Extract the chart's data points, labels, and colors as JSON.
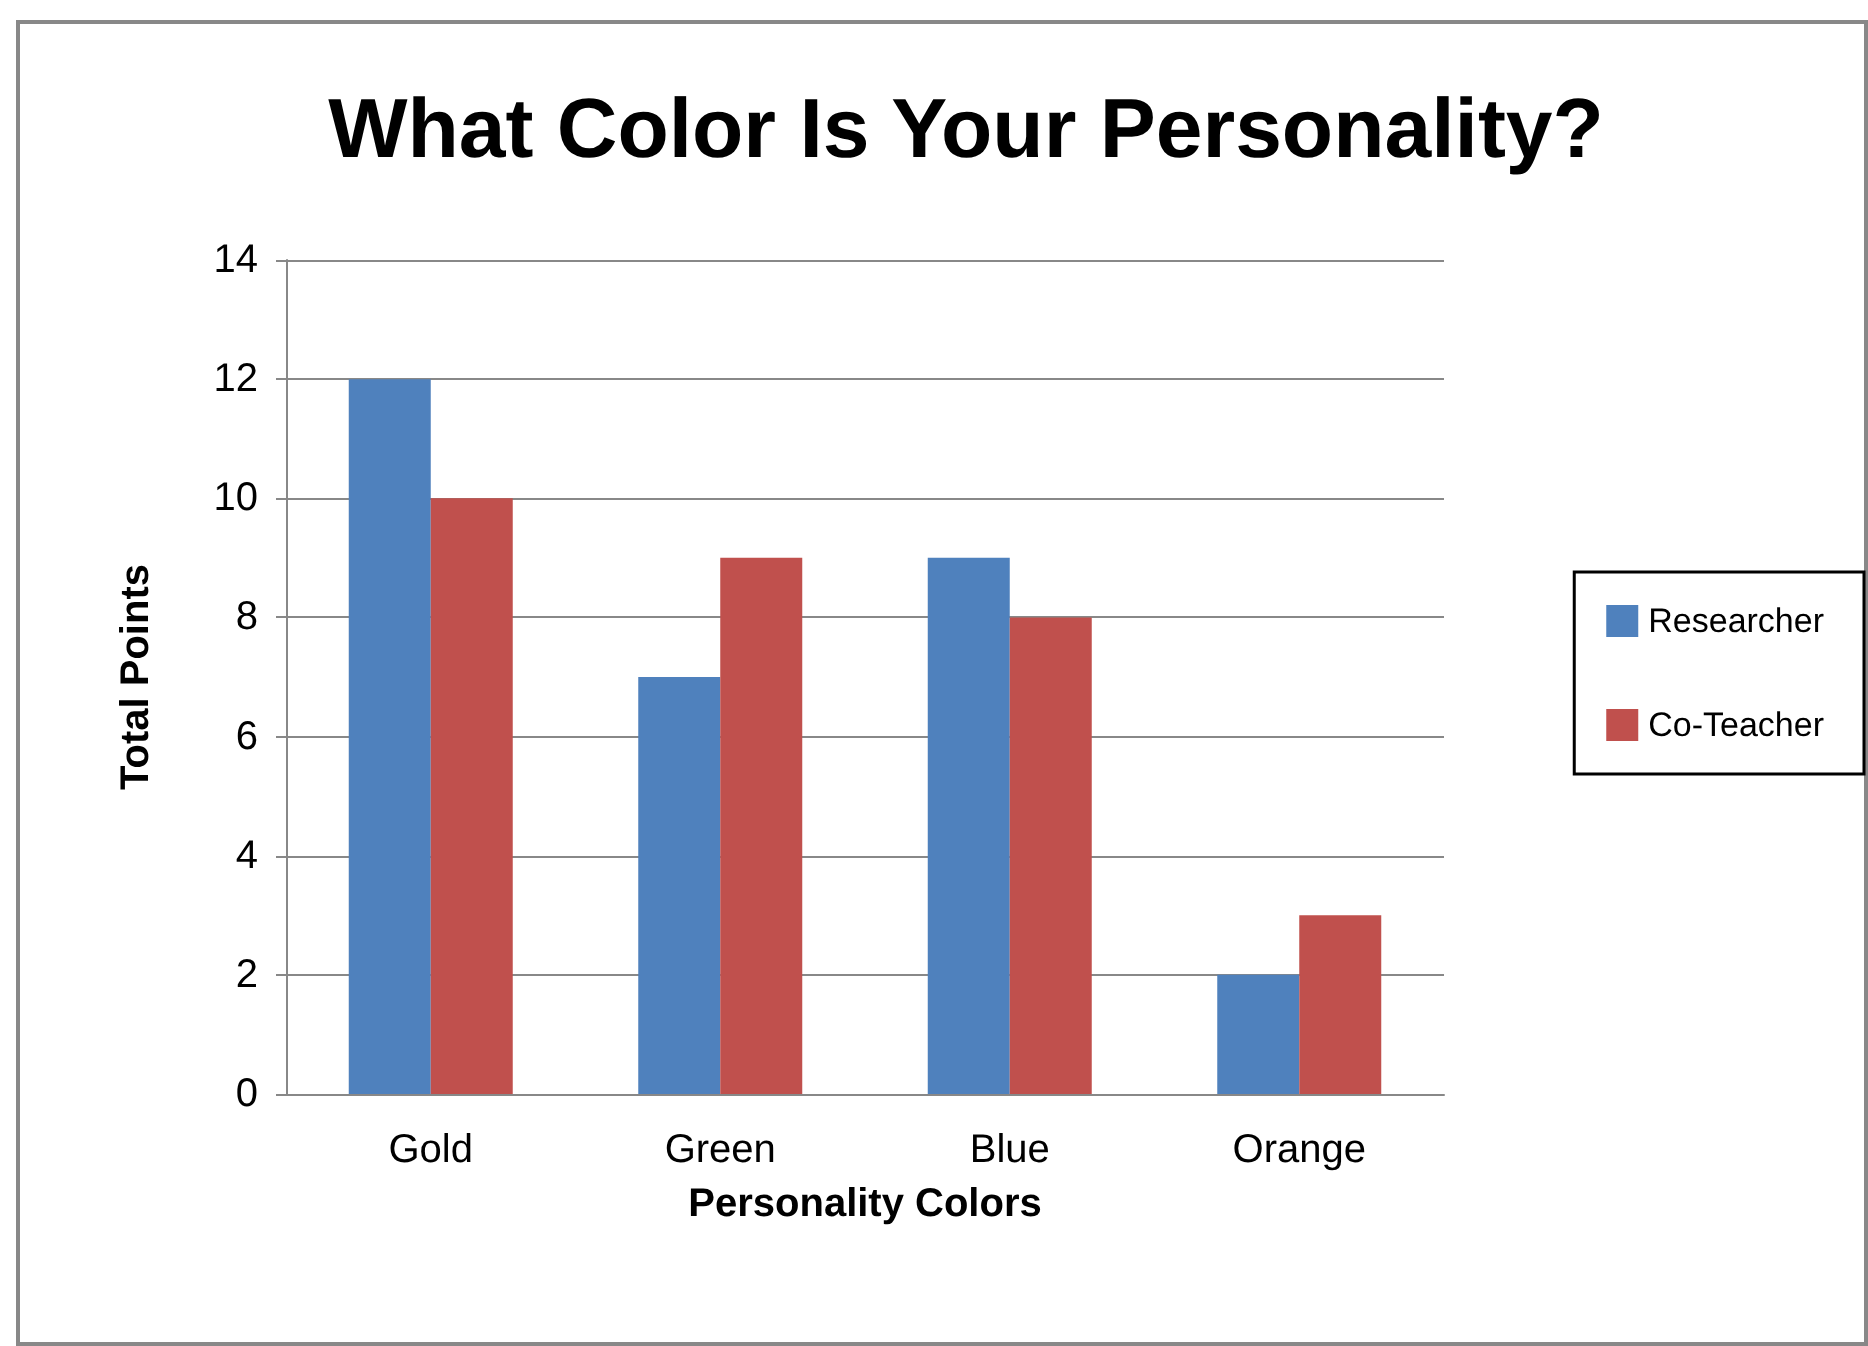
{
  "chart_data": {
    "type": "bar",
    "title": "What Color Is Your Personality?",
    "xlabel": "Personality Colors",
    "ylabel": "Total Points",
    "categories": [
      "Gold",
      "Green",
      "Blue",
      "Orange"
    ],
    "series": [
      {
        "name": "Researcher",
        "color": "#4f81bd",
        "values": [
          12,
          7,
          9,
          2
        ]
      },
      {
        "name": "Co-Teacher",
        "color": "#c0504d",
        "values": [
          10,
          9,
          8,
          3
        ]
      }
    ],
    "ylim": [
      0,
      14
    ],
    "yticks": [
      0,
      2,
      4,
      6,
      8,
      10,
      12,
      14
    ],
    "grid": "y",
    "legend": "right"
  }
}
